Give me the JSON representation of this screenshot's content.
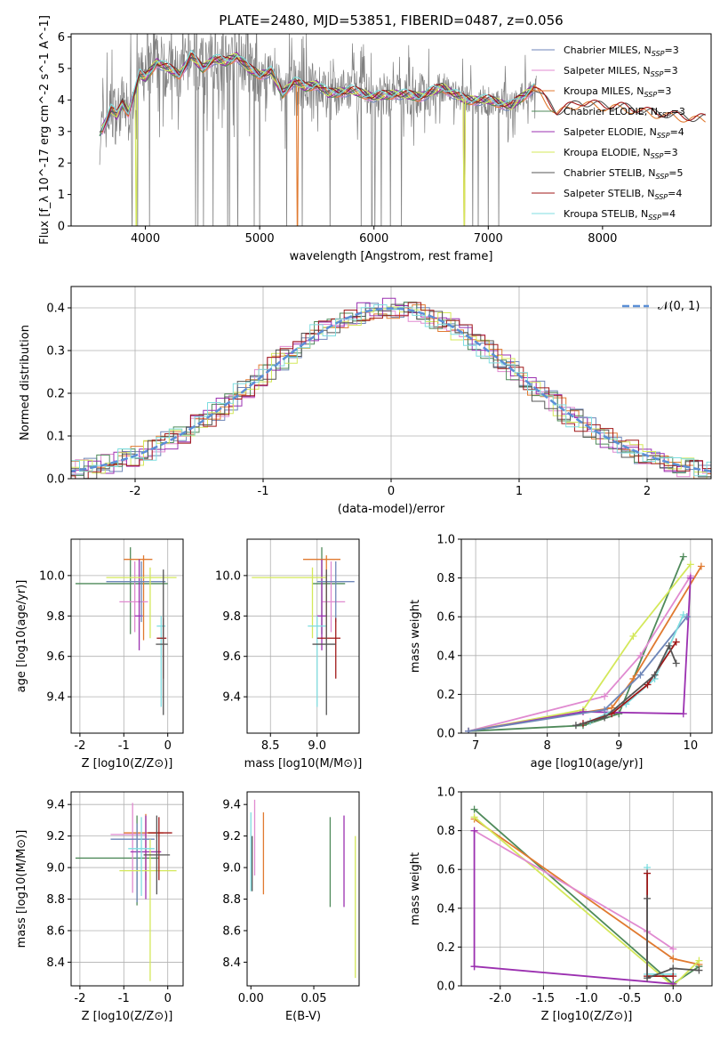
{
  "figure": {
    "title": "PLATE=2480, MJD=53851, FIBERID=0487, z=0.056"
  },
  "series_styles": [
    {
      "name": "Chabrier MILES",
      "nssp": "3",
      "color": "#6e86b8"
    },
    {
      "name": "Salpeter MILES",
      "nssp": "3",
      "color": "#e08ad0"
    },
    {
      "name": "Kroupa MILES",
      "nssp": "3",
      "color": "#e07a30"
    },
    {
      "name": "Chabrier ELODIE",
      "nssp": "3",
      "color": "#4f8a5a"
    },
    {
      "name": "Salpeter ELODIE",
      "nssp": "4",
      "color": "#9b30b0"
    },
    {
      "name": "Kroupa ELODIE",
      "nssp": "3",
      "color": "#d4e85a"
    },
    {
      "name": "Chabrier STELIB",
      "nssp": "5",
      "color": "#555555"
    },
    {
      "name": "Salpeter STELIB",
      "nssp": "4",
      "color": "#a01818"
    },
    {
      "name": "Kroupa STELIB",
      "nssp": "4",
      "color": "#7fdde0"
    }
  ],
  "chart_data": [
    {
      "id": "spectrum",
      "type": "line",
      "xlabel": "wavelength [Angstrom, rest frame]",
      "ylabel": "Flux [f_λ 10^-17 erg cm^-2 s^-1 A^-1]",
      "xlim": [
        3350,
        8950
      ],
      "ylim": [
        0,
        6.1
      ],
      "xticks": [
        4000,
        5000,
        6000,
        7000,
        8000
      ],
      "yticks": [
        0,
        1,
        2,
        3,
        4,
        5,
        6
      ],
      "grid": false,
      "legend": "right",
      "data_color": "#808080",
      "continuum": {
        "x": [
          3600,
          3650,
          3700,
          3750,
          3800,
          3850,
          3900,
          3950,
          4000,
          4100,
          4200,
          4300,
          4400,
          4500,
          4600,
          4700,
          4800,
          4900,
          5000,
          5100,
          5200,
          5300,
          5400,
          5500,
          5600,
          5800,
          6000,
          6200,
          6400,
          6600,
          6800,
          7000,
          7200,
          7400,
          7600,
          7800,
          8000,
          8200,
          8400,
          8600,
          8800
        ],
        "y": [
          2.9,
          3.3,
          3.7,
          3.5,
          3.9,
          3.6,
          4.2,
          4.8,
          4.7,
          5.2,
          5.0,
          4.8,
          5.4,
          5.0,
          5.3,
          5.2,
          5.4,
          5.0,
          4.8,
          4.9,
          4.2,
          4.6,
          4.4,
          4.5,
          4.2,
          4.3,
          4.1,
          4.2,
          4.1,
          4.4,
          4.0,
          4.0,
          3.8,
          4.4,
          3.6,
          3.9,
          3.8,
          3.75,
          3.6,
          3.5,
          3.4
        ]
      }
    },
    {
      "id": "residual-hist",
      "type": "line",
      "xlabel": "(data-model)/error",
      "ylabel": "Normed distribution",
      "xlim": [
        -2.5,
        2.5
      ],
      "ylim": [
        0,
        0.45
      ],
      "xticks": [
        -2,
        -1,
        0,
        1,
        2
      ],
      "yticks": [
        0.0,
        0.1,
        0.2,
        0.3,
        0.4
      ],
      "grid": true,
      "legend": "top-right",
      "reference_label": "𝒩(0, 1)",
      "reference_color": "#5b8fd6"
    },
    {
      "id": "age-vs-Z",
      "type": "scatter",
      "xlabel": "Z [log10(Z/Z⊙)]",
      "ylabel": "age [log10(age/yr)]",
      "xlim": [
        -2.2,
        0.35
      ],
      "ylim": [
        9.22,
        10.18
      ],
      "xticks": [
        -2,
        -1,
        0
      ],
      "yticks": [
        9.4,
        9.6,
        9.8,
        10.0
      ],
      "grid": true,
      "points": [
        {
          "s": 3,
          "x": -0.85,
          "xerr": [
            1.25,
            0.85
          ],
          "y": 9.96,
          "yerr": [
            0.25,
            0.18
          ]
        },
        {
          "s": 2,
          "x": -0.55,
          "xerr": [
            0.45,
            0.2
          ],
          "y": 10.08,
          "yerr": [
            0.4,
            0.02
          ]
        },
        {
          "s": 1,
          "x": -0.75,
          "xerr": [
            0.35,
            0.3
          ],
          "y": 9.87,
          "yerr": [
            0.15,
            0.2
          ]
        },
        {
          "s": 4,
          "x": -0.65,
          "xerr": [
            0.1,
            0.08
          ],
          "y": 9.8,
          "yerr": [
            0.17,
            0.28
          ]
        },
        {
          "s": 0,
          "x": -0.6,
          "xerr": [
            0.8,
            0.55
          ],
          "y": 9.97,
          "yerr": [
            0.2,
            0.1
          ]
        },
        {
          "s": 5,
          "x": -0.4,
          "xerr": [
            1.0,
            0.6
          ],
          "y": 9.99,
          "yerr": [
            0.3,
            0.05
          ]
        },
        {
          "s": 8,
          "x": -0.15,
          "xerr": [
            0.1,
            0.1
          ],
          "y": 9.75,
          "yerr": [
            0.4,
            0.05
          ]
        },
        {
          "s": 7,
          "x": -0.1,
          "xerr": [
            0.15,
            0.07
          ],
          "y": 9.69,
          "yerr": [
            0.2,
            0.1
          ]
        },
        {
          "s": 6,
          "x": -0.1,
          "xerr": [
            0.17,
            0.1
          ],
          "y": 9.66,
          "yerr": [
            0.35,
            0.37
          ]
        }
      ]
    },
    {
      "id": "age-vs-mass",
      "type": "scatter",
      "xlabel": "mass [log10(M/M⊙)]",
      "ylabel": "",
      "xlim": [
        8.25,
        9.45
      ],
      "ylim": [
        9.22,
        10.18
      ],
      "xticks": [
        8.5,
        9.0
      ],
      "yticks": [
        9.4,
        9.6,
        9.8,
        10.0
      ],
      "grid": true,
      "points": [
        {
          "s": 3,
          "x": 9.05,
          "xerr": [
            0.1,
            0.25
          ],
          "y": 9.96,
          "yerr": [
            0.25,
            0.18
          ]
        },
        {
          "s": 2,
          "x": 9.1,
          "xerr": [
            0.25,
            0.15
          ],
          "y": 10.08,
          "yerr": [
            0.4,
            0.02
          ]
        },
        {
          "s": 1,
          "x": 9.15,
          "xerr": [
            0.1,
            0.15
          ],
          "y": 9.87,
          "yerr": [
            0.15,
            0.2
          ]
        },
        {
          "s": 4,
          "x": 9.05,
          "xerr": [
            0.05,
            0.05
          ],
          "y": 9.8,
          "yerr": [
            0.17,
            0.28
          ]
        },
        {
          "s": 0,
          "x": 9.2,
          "xerr": [
            0.2,
            0.2
          ],
          "y": 9.97,
          "yerr": [
            0.2,
            0.1
          ]
        },
        {
          "s": 5,
          "x": 8.95,
          "xerr": [
            0.65,
            0.15
          ],
          "y": 9.99,
          "yerr": [
            0.3,
            0.05
          ]
        },
        {
          "s": 8,
          "x": 9.0,
          "xerr": [
            0.1,
            0.1
          ],
          "y": 9.75,
          "yerr": [
            0.4,
            0.05
          ]
        },
        {
          "s": 7,
          "x": 9.2,
          "xerr": [
            0.2,
            0.05
          ],
          "y": 9.69,
          "yerr": [
            0.2,
            0.1
          ]
        },
        {
          "s": 6,
          "x": 9.1,
          "xerr": [
            0.15,
            0.1
          ],
          "y": 9.66,
          "yerr": [
            0.35,
            0.37
          ]
        }
      ]
    },
    {
      "id": "weight-vs-age",
      "type": "line",
      "xlabel": "age [log10(age/yr)]",
      "ylabel": "mass weight",
      "xlim": [
        6.8,
        10.3
      ],
      "ylim": [
        0,
        1.0
      ],
      "xticks": [
        7,
        8,
        9,
        10
      ],
      "yticks": [
        0.0,
        0.2,
        0.4,
        0.6,
        0.8,
        1.0
      ],
      "grid": true,
      "curves": [
        {
          "s": 3,
          "x": [
            6.9,
            8.5,
            9.0,
            9.9
          ],
          "y": [
            0.01,
            0.04,
            0.1,
            0.91
          ]
        },
        {
          "s": 2,
          "x": [
            6.9,
            8.9,
            9.2,
            10.15
          ],
          "y": [
            0.01,
            0.13,
            0.28,
            0.86
          ]
        },
        {
          "s": 1,
          "x": [
            6.9,
            8.8,
            9.3,
            10.0
          ],
          "y": [
            0.01,
            0.19,
            0.4,
            0.81
          ]
        },
        {
          "s": 5,
          "x": [
            6.9,
            8.5,
            9.2,
            10.0
          ],
          "y": [
            0.01,
            0.12,
            0.5,
            0.87
          ]
        },
        {
          "s": 4,
          "x": [
            6.9,
            8.5,
            9.9,
            10.0
          ],
          "y": [
            0.01,
            0.11,
            0.1,
            0.8
          ]
        },
        {
          "s": 0,
          "x": [
            6.9,
            8.8,
            9.3,
            9.95
          ],
          "y": [
            0.01,
            0.12,
            0.3,
            0.6
          ]
        },
        {
          "s": 8,
          "x": [
            8.6,
            9.1,
            9.5,
            9.9
          ],
          "y": [
            0.06,
            0.15,
            0.28,
            0.61
          ]
        },
        {
          "s": 7,
          "x": [
            8.5,
            8.9,
            9.4,
            9.8
          ],
          "y": [
            0.05,
            0.1,
            0.25,
            0.47
          ]
        },
        {
          "s": 6,
          "x": [
            8.4,
            8.8,
            9.5,
            9.7,
            9.8
          ],
          "y": [
            0.04,
            0.08,
            0.3,
            0.45,
            0.36
          ]
        }
      ]
    },
    {
      "id": "mass-vs-Z",
      "type": "scatter",
      "xlabel": "Z [log10(Z/Z⊙)]",
      "ylabel": "mass [log10(M/M⊙)]",
      "xlim": [
        -2.2,
        0.35
      ],
      "ylim": [
        8.25,
        9.48
      ],
      "xticks": [
        -2,
        -1,
        0
      ],
      "yticks": [
        8.4,
        8.6,
        8.8,
        9.0,
        9.2,
        9.4
      ],
      "grid": true,
      "points": [
        {
          "s": 3,
          "x": -0.7,
          "xerr": [
            1.4,
            0.5
          ],
          "y": 9.06,
          "yerr": [
            0.3,
            0.27
          ]
        },
        {
          "s": 2,
          "x": -0.5,
          "xerr": [
            0.5,
            0.4
          ],
          "y": 9.22,
          "yerr": [
            0.3,
            0.12
          ]
        },
        {
          "s": 1,
          "x": -0.8,
          "xerr": [
            0.5,
            0.3
          ],
          "y": 9.21,
          "yerr": [
            0.37,
            0.2
          ]
        },
        {
          "s": 4,
          "x": -0.5,
          "xerr": [
            0.35,
            0.35
          ],
          "y": 9.1,
          "yerr": [
            0.3,
            0.23
          ]
        },
        {
          "s": 0,
          "x": -0.7,
          "xerr": [
            0.6,
            0.4
          ],
          "y": 9.18,
          "yerr": [
            0.4,
            0.1
          ]
        },
        {
          "s": 5,
          "x": -0.4,
          "xerr": [
            0.7,
            0.6
          ],
          "y": 8.98,
          "yerr": [
            0.7,
            0.2
          ]
        },
        {
          "s": 8,
          "x": -0.6,
          "xerr": [
            0.3,
            0.3
          ],
          "y": 9.12,
          "yerr": [
            0.3,
            0.2
          ]
        },
        {
          "s": 7,
          "x": -0.2,
          "xerr": [
            0.25,
            0.3
          ],
          "y": 9.22,
          "yerr": [
            0.3,
            0.1
          ]
        },
        {
          "s": 6,
          "x": -0.25,
          "xerr": [
            0.3,
            0.3
          ],
          "y": 9.08,
          "yerr": [
            0.25,
            0.25
          ]
        }
      ]
    },
    {
      "id": "mass-vs-ebv",
      "type": "scatter",
      "xlabel": "E(B-V)",
      "ylabel": "",
      "xlim": [
        -0.003,
        0.086
      ],
      "ylim": [
        8.25,
        9.48
      ],
      "xticks": [
        0.0,
        0.05
      ],
      "yticks": [
        8.4,
        8.6,
        8.8,
        9.0,
        9.2,
        9.4
      ],
      "grid": false,
      "points": [
        {
          "s": 8,
          "x": 0.0,
          "y": 9.1,
          "yerr": [
            0.25,
            0.25
          ]
        },
        {
          "s": 1,
          "x": 0.003,
          "y": 9.2,
          "yerr": [
            0.25,
            0.23
          ]
        },
        {
          "s": 6,
          "x": 0.001,
          "y": 9.0,
          "yerr": [
            0.15,
            0.2
          ]
        },
        {
          "s": 2,
          "x": 0.01,
          "y": 9.1,
          "yerr": [
            0.27,
            0.25
          ]
        },
        {
          "s": 3,
          "x": 0.063,
          "y": 9.05,
          "yerr": [
            0.3,
            0.27
          ]
        },
        {
          "s": 4,
          "x": 0.074,
          "y": 9.05,
          "yerr": [
            0.3,
            0.28
          ]
        },
        {
          "s": 5,
          "x": 0.083,
          "y": 8.75,
          "yerr": [
            0.45,
            0.45
          ]
        }
      ]
    },
    {
      "id": "weight-vs-Z",
      "type": "line",
      "xlabel": "Z [log10(Z/Z⊙)]",
      "ylabel": "mass weight",
      "xlim": [
        -2.45,
        0.45
      ],
      "ylim": [
        0,
        1.0
      ],
      "xticks": [
        -2.0,
        -1.5,
        -1.0,
        -0.5,
        0.0
      ],
      "yticks": [
        0.0,
        0.2,
        0.4,
        0.6,
        0.8,
        1.0
      ],
      "grid": true,
      "curves": [
        {
          "s": 3,
          "x": [
            -2.3,
            0.0,
            0.3
          ],
          "y": [
            0.91,
            0.01,
            0.1
          ]
        },
        {
          "s": 2,
          "x": [
            -2.3,
            0.0,
            0.3
          ],
          "y": [
            0.86,
            0.14,
            0.11
          ]
        },
        {
          "s": 5,
          "x": [
            -2.3,
            0.0,
            0.3
          ],
          "y": [
            0.87,
            0.0,
            0.13
          ]
        },
        {
          "s": 1,
          "x": [
            -2.3,
            -0.3,
            0.0
          ],
          "y": [
            0.8,
            0.28,
            0.19
          ]
        },
        {
          "s": 4,
          "x": [
            -2.3,
            0.0
          ],
          "y": [
            0.1,
            0.01
          ]
        },
        {
          "s": 4,
          "x": [
            -2.3,
            -2.3
          ],
          "y": [
            0.1,
            0.8
          ]
        },
        {
          "s": 8,
          "x": [
            -0.3,
            -0.3,
            0.0
          ],
          "y": [
            0.61,
            0.06,
            0.06
          ]
        },
        {
          "s": 7,
          "x": [
            -0.3,
            -0.3,
            0.0
          ],
          "y": [
            0.58,
            0.05,
            0.05
          ]
        },
        {
          "s": 6,
          "x": [
            -0.3,
            -0.3,
            0.0,
            0.3
          ],
          "y": [
            0.45,
            0.04,
            0.09,
            0.08
          ]
        }
      ]
    }
  ]
}
